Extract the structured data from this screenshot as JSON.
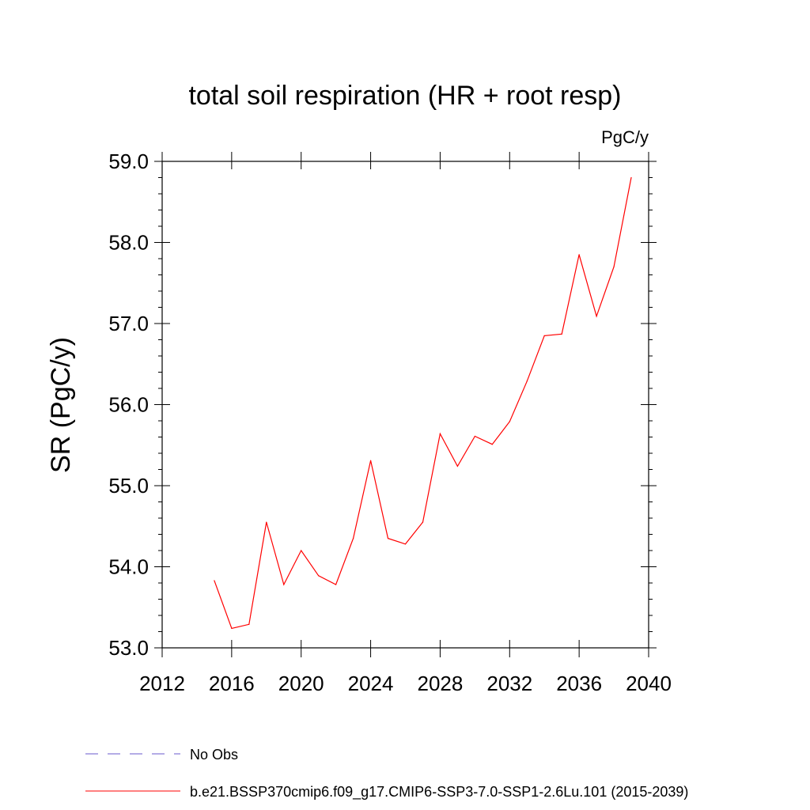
{
  "chart_data": {
    "type": "line",
    "title": "total soil respiration (HR + root resp)",
    "units_label": "PgC/y",
    "ylabel": "SR  (PgC/y)",
    "xlabel": "",
    "xlim": [
      2012,
      2040
    ],
    "ylim": [
      53.0,
      59.0
    ],
    "x_ticks": [
      2012,
      2016,
      2020,
      2024,
      2028,
      2032,
      2036,
      2040
    ],
    "y_ticks": [
      "53.0",
      "54.0",
      "55.0",
      "56.0",
      "57.0",
      "58.0",
      "59.0"
    ],
    "grid": false,
    "legend_placement": "bottom",
    "series": [
      {
        "name": "b.e21.BSSP370cmip6.f09_g17.CMIP6-SSP3-7.0-SSP1-2.6Lu.101 (2015-2039)",
        "color": "#ff0000",
        "x": [
          2015,
          2016,
          2017,
          2018,
          2019,
          2020,
          2021,
          2022,
          2023,
          2024,
          2025,
          2026,
          2027,
          2028,
          2029,
          2030,
          2031,
          2032,
          2033,
          2034,
          2035,
          2036,
          2037,
          2038,
          2039
        ],
        "y": [
          53.83,
          53.24,
          53.29,
          54.55,
          53.78,
          54.2,
          53.89,
          53.78,
          54.35,
          55.31,
          54.35,
          54.28,
          54.55,
          55.64,
          55.24,
          55.61,
          55.51,
          55.79,
          56.29,
          56.85,
          56.87,
          57.85,
          57.09,
          57.7,
          58.8
        ]
      }
    ],
    "legend": [
      {
        "label": "No Obs",
        "style": "dashed",
        "color": "#6a5acd"
      },
      {
        "label": "b.e21.BSSP370cmip6.f09_g17.CMIP6-SSP3-7.0-SSP1-2.6Lu.101 (2015-2039)",
        "style": "solid",
        "color": "#ff0000"
      }
    ]
  }
}
